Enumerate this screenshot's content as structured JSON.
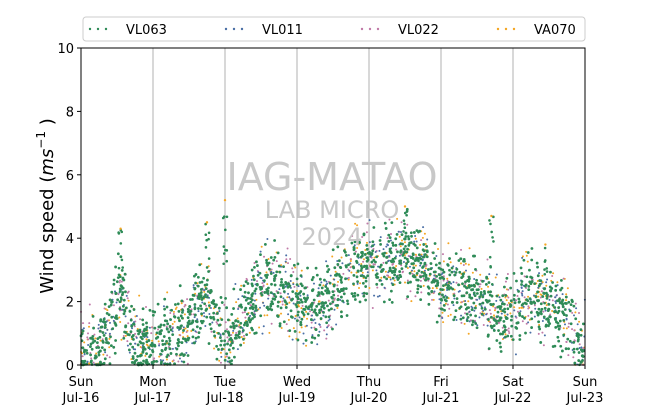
{
  "chart_data": {
    "type": "scatter",
    "ylabel_base": "Wind speed (",
    "ylabel_unit": "ms",
    "ylabel_exp": "−1",
    "ylabel_close": " )",
    "ylim": [
      0,
      10
    ],
    "yticks": [
      "0",
      "2",
      "4",
      "6",
      "8",
      "10"
    ],
    "xlim_days": [
      0,
      7
    ],
    "xticks": [
      {
        "day": "Sun",
        "date": "Jul-16"
      },
      {
        "day": "Mon",
        "date": "Jul-17"
      },
      {
        "day": "Tue",
        "date": "Jul-18"
      },
      {
        "day": "Wed",
        "date": "Jul-19"
      },
      {
        "day": "Thu",
        "date": "Jul-20"
      },
      {
        "day": "Fri",
        "date": "Jul-21"
      },
      {
        "day": "Sat",
        "date": "Jul-22"
      },
      {
        "day": "Sun",
        "date": "Jul-23"
      }
    ],
    "grid": "vertical",
    "legend_position": "top",
    "series": [
      {
        "name": "VL063",
        "color": "#2e8b57",
        "size": 1.4
      },
      {
        "name": "VL011",
        "color": "#4a6fa5",
        "size": 1.0
      },
      {
        "name": "VL022",
        "color": "#c07aa8",
        "size": 1.0
      },
      {
        "name": "VA070",
        "color": "#f5a623",
        "size": 1.0
      }
    ],
    "trend": [
      [
        0.0,
        0.5
      ],
      [
        0.25,
        0.4
      ],
      [
        0.4,
        1.1
      ],
      [
        0.55,
        2.4
      ],
      [
        0.7,
        1.0
      ],
      [
        0.9,
        0.5
      ],
      [
        1.1,
        0.6
      ],
      [
        1.35,
        1.0
      ],
      [
        1.55,
        1.5
      ],
      [
        1.75,
        2.2
      ],
      [
        1.9,
        1.2
      ],
      [
        2.05,
        0.7
      ],
      [
        2.25,
        1.5
      ],
      [
        2.5,
        2.4
      ],
      [
        2.75,
        2.6
      ],
      [
        3.0,
        2.0
      ],
      [
        3.25,
        1.7
      ],
      [
        3.5,
        2.3
      ],
      [
        3.75,
        2.9
      ],
      [
        4.0,
        3.3
      ],
      [
        4.25,
        3.2
      ],
      [
        4.5,
        3.6
      ],
      [
        4.75,
        3.2
      ],
      [
        5.0,
        2.4
      ],
      [
        5.25,
        2.5
      ],
      [
        5.5,
        2.2
      ],
      [
        5.75,
        1.6
      ],
      [
        6.0,
        1.7
      ],
      [
        6.25,
        2.2
      ],
      [
        6.5,
        2.0
      ],
      [
        6.75,
        1.4
      ],
      [
        7.0,
        0.5
      ]
    ],
    "spikes": [
      [
        0.55,
        4.3
      ],
      [
        1.75,
        4.5
      ],
      [
        2.0,
        5.2
      ],
      [
        4.5,
        5.0
      ],
      [
        5.7,
        4.7
      ],
      [
        6.45,
        3.8
      ]
    ]
  },
  "watermark": {
    "line1": "IAG-MATAO",
    "line2": "LAB MICRO",
    "line3": "2024"
  }
}
